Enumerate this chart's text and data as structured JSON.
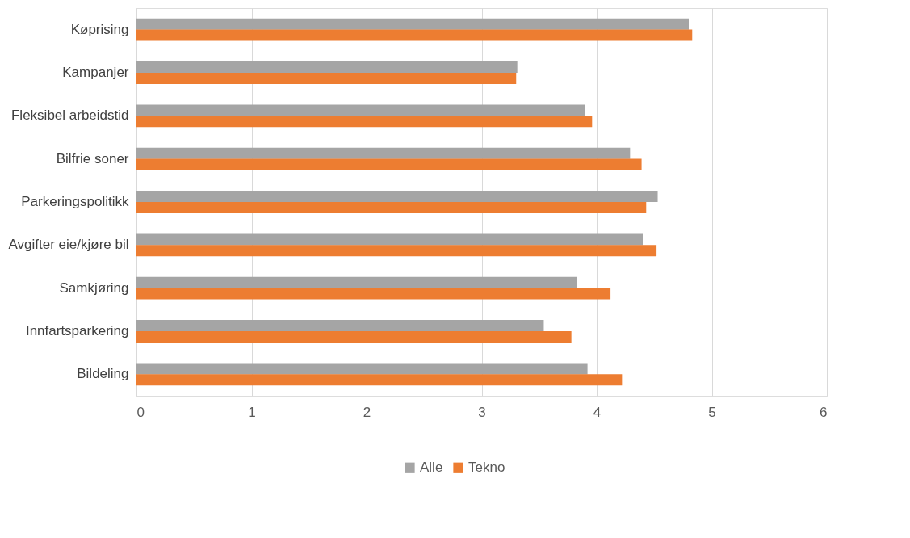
{
  "chart_data": {
    "type": "bar",
    "orientation": "horizontal",
    "categories": [
      "Køprising",
      "Kampanjer",
      "Fleksibel arbeidstid",
      "Bilfrie soner",
      "Parkeringspolitikk",
      "Avgifter eie/kjøre bil",
      "Samkjøring",
      "Innfartsparkering",
      "Bildeling"
    ],
    "series": [
      {
        "name": "Alle",
        "color": "#a5a5a5",
        "values": [
          4.8,
          3.31,
          3.9,
          4.29,
          4.53,
          4.4,
          3.83,
          3.54,
          3.92
        ]
      },
      {
        "name": "Tekno",
        "color": "#ed7d31",
        "values": [
          4.83,
          3.3,
          3.96,
          4.39,
          4.43,
          4.52,
          4.12,
          3.78,
          4.22
        ]
      }
    ],
    "xlim": [
      0,
      6
    ],
    "xticks": [
      0,
      1,
      2,
      3,
      4,
      5,
      6
    ],
    "grid": "x",
    "legend": "bottom"
  }
}
